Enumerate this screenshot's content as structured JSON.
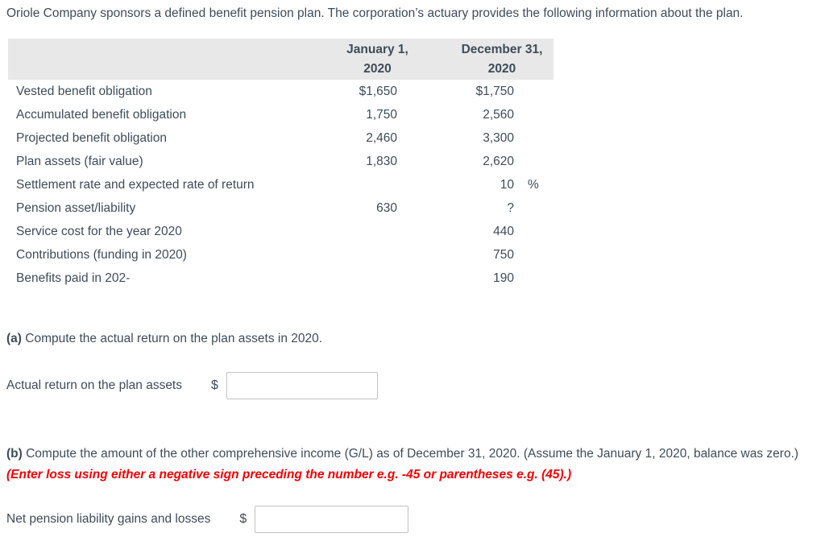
{
  "intro": "Oriole Company sponsors a defined benefit pension plan. The corporation’s actuary provides the following information about the plan.",
  "table": {
    "col_headers": [
      {
        "line1": "January 1,",
        "line2": "2020"
      },
      {
        "line1": "December 31,",
        "line2": "2020"
      }
    ],
    "rows": [
      {
        "label": "Vested benefit obligation",
        "jan": "$1,650",
        "dec": "$1,750",
        "unit": ""
      },
      {
        "label": "Accumulated benefit obligation",
        "jan": "1,750",
        "dec": "2,560",
        "unit": ""
      },
      {
        "label": "Projected benefit obligation",
        "jan": "2,460",
        "dec": "3,300",
        "unit": ""
      },
      {
        "label": "Plan assets (fair value)",
        "jan": "1,830",
        "dec": "2,620",
        "unit": ""
      },
      {
        "label": "Settlement rate and expected rate of return",
        "jan": "",
        "dec": "10",
        "unit": "%"
      },
      {
        "label": "Pension asset/liability",
        "jan": "630",
        "dec": "?",
        "unit": ""
      },
      {
        "label": "Service cost for the year 2020",
        "jan": "",
        "dec": "440",
        "unit": ""
      },
      {
        "label": "Contributions (funding in 2020)",
        "jan": "",
        "dec": "750",
        "unit": ""
      },
      {
        "label": "Benefits paid in 202-",
        "jan": "",
        "dec": "190",
        "unit": ""
      }
    ]
  },
  "part_a": {
    "marker": "(a)",
    "prompt": "Compute the actual return on the plan assets in 2020.",
    "answer_label": "Actual return on the plan assets",
    "currency_symbol": "$",
    "input_value": ""
  },
  "part_b": {
    "marker": "(b)",
    "prompt": "Compute the amount of the other comprehensive income (G/L) as of December 31, 2020. (Assume the January 1, 2020, balance was zero.)",
    "note": "(Enter loss using either a negative sign preceding the number e.g. -45 or parentheses e.g. (45).)",
    "answer_label": "Net pension liability gains and losses",
    "currency_symbol": "$",
    "input_value": ""
  },
  "colors": {
    "text": "#3e4c59",
    "table_header_bg": "#e8e8e8",
    "note_red": "#f40000",
    "input_border": "#c2c2c2"
  }
}
